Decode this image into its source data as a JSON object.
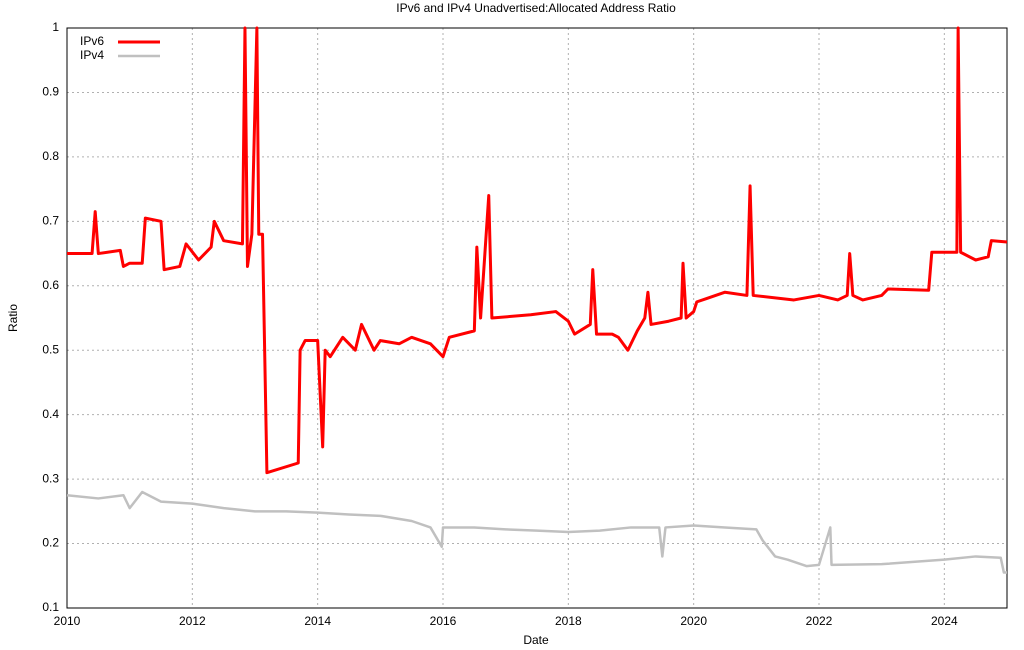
{
  "chart_data": {
    "type": "line",
    "title": "IPv6 and IPv4 Unadvertised:Allocated Address Ratio",
    "xlabel": "Date",
    "ylabel": "Ratio",
    "xlim": [
      2010,
      2025
    ],
    "xticks": [
      2010,
      2012,
      2014,
      2016,
      2018,
      2020,
      2022,
      2024
    ],
    "ylim": [
      0.1,
      1
    ],
    "yticks": [
      0.1,
      0.2,
      0.3,
      0.4,
      0.5,
      0.6,
      0.7,
      0.8,
      0.9,
      1
    ],
    "grid": true,
    "legend": "top-left",
    "series": [
      {
        "name": "IPv6",
        "color": "#ff0000",
        "x": [
          2010,
          2010.4,
          2010.45,
          2010.5,
          2010.85,
          2010.9,
          2011.0,
          2011.2,
          2011.25,
          2011.5,
          2011.55,
          2011.8,
          2011.9,
          2012.1,
          2012.3,
          2012.35,
          2012.5,
          2012.8,
          2012.84,
          2012.88,
          2012.95,
          2013.03,
          2013.06,
          2013.12,
          2013.19,
          2013.69,
          2013.72,
          2013.8,
          2014.0,
          2014.08,
          2014.12,
          2014.2,
          2014.4,
          2014.6,
          2014.7,
          2014.9,
          2015.0,
          2015.3,
          2015.5,
          2015.8,
          2016.0,
          2016.1,
          2016.5,
          2016.54,
          2016.6,
          2016.73,
          2016.78,
          2017.4,
          2017.8,
          2018.0,
          2018.1,
          2018.35,
          2018.39,
          2018.45,
          2018.7,
          2018.8,
          2018.95,
          2019.1,
          2019.22,
          2019.27,
          2019.32,
          2019.6,
          2019.8,
          2019.83,
          2019.88,
          2020.0,
          2020.05,
          2020.2,
          2020.5,
          2020.85,
          2020.9,
          2020.95,
          2021.6,
          2022.0,
          2022.3,
          2022.45,
          2022.49,
          2022.54,
          2022.7,
          2023.0,
          2023.1,
          2023.75,
          2023.8,
          2024.2,
          2024.22,
          2024.26,
          2024.5,
          2024.7,
          2024.75,
          2025.0
        ],
        "values": [
          0.65,
          0.65,
          0.715,
          0.65,
          0.655,
          0.63,
          0.635,
          0.635,
          0.705,
          0.7,
          0.625,
          0.63,
          0.665,
          0.64,
          0.66,
          0.7,
          0.67,
          0.665,
          1,
          0.63,
          0.68,
          1,
          0.68,
          0.68,
          0.31,
          0.325,
          0.5,
          0.515,
          0.515,
          0.35,
          0.5,
          0.49,
          0.52,
          0.5,
          0.54,
          0.5,
          0.515,
          0.51,
          0.52,
          0.51,
          0.49,
          0.52,
          0.53,
          0.66,
          0.55,
          0.74,
          0.55,
          0.555,
          0.56,
          0.545,
          0.525,
          0.54,
          0.625,
          0.525,
          0.525,
          0.52,
          0.5,
          0.53,
          0.55,
          0.59,
          0.54,
          0.545,
          0.55,
          0.635,
          0.55,
          0.56,
          0.575,
          0.58,
          0.59,
          0.585,
          0.755,
          0.585,
          0.578,
          0.585,
          0.578,
          0.585,
          0.65,
          0.585,
          0.578,
          0.585,
          0.595,
          0.593,
          0.652,
          0.652,
          1,
          0.652,
          0.64,
          0.645,
          0.67,
          0.668
        ]
      },
      {
        "name": "IPv4",
        "color": "#c0c0c0",
        "x": [
          2010,
          2010.5,
          2010.9,
          2011.0,
          2011.2,
          2011.5,
          2012.0,
          2012.5,
          2013.0,
          2013.5,
          2014.0,
          2014.5,
          2015.0,
          2015.5,
          2015.8,
          2015.98,
          2016.0,
          2016.5,
          2017.0,
          2017.5,
          2018.0,
          2018.5,
          2019.0,
          2019.45,
          2019.5,
          2019.55,
          2020.0,
          2020.5,
          2021.0,
          2021.1,
          2021.3,
          2021.5,
          2021.8,
          2022.0,
          2022.18,
          2022.2,
          2023.0,
          2024.0,
          2024.5,
          2024.9,
          2024.95,
          2025.0
        ],
        "values": [
          0.275,
          0.27,
          0.275,
          0.255,
          0.28,
          0.265,
          0.262,
          0.255,
          0.25,
          0.25,
          0.248,
          0.245,
          0.243,
          0.235,
          0.225,
          0.195,
          0.225,
          0.225,
          0.222,
          0.22,
          0.218,
          0.22,
          0.225,
          0.225,
          0.18,
          0.225,
          0.228,
          0.225,
          0.222,
          0.205,
          0.18,
          0.175,
          0.165,
          0.167,
          0.225,
          0.167,
          0.168,
          0.175,
          0.18,
          0.178,
          0.155,
          0.155
        ]
      }
    ]
  }
}
